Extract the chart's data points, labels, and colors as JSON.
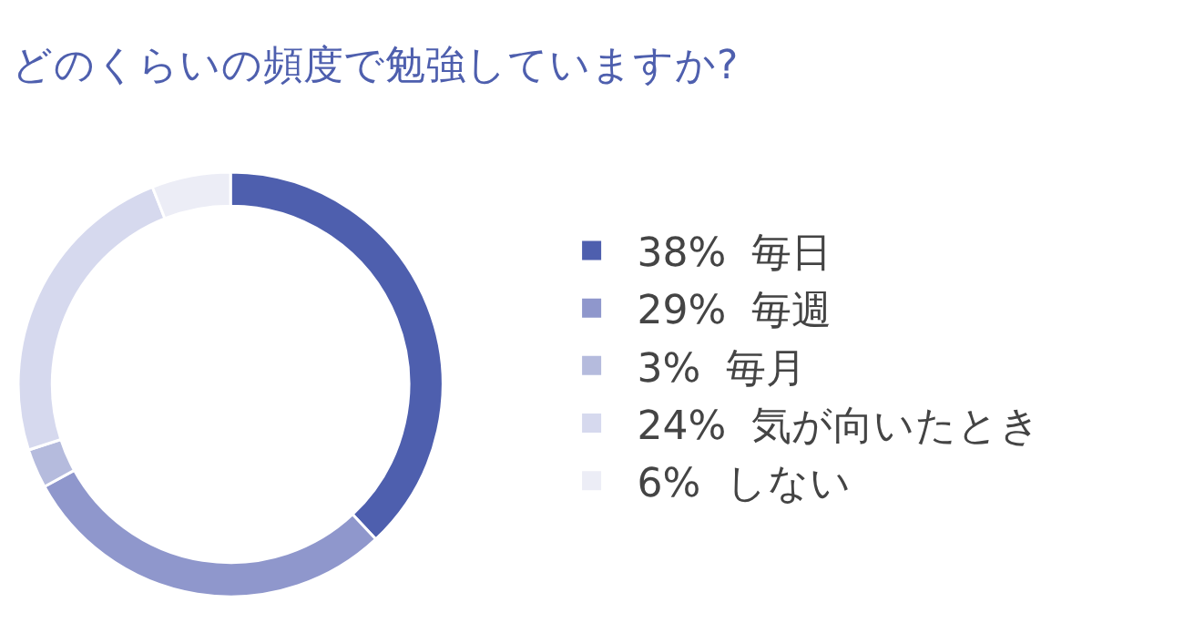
{
  "chart_data": {
    "type": "donut",
    "title": "どのくらいの頻度で勉強していますか?",
    "categories": [
      "毎日",
      "毎週",
      "毎月",
      "気が向いたとき",
      "しない"
    ],
    "values": [
      38,
      29,
      3,
      24,
      6
    ],
    "value_labels": [
      "38%",
      "29%",
      "3%",
      "24%",
      "6%"
    ],
    "colors": [
      "#4e5fae",
      "#8f97cc",
      "#b5bbdd",
      "#d6d9ee",
      "#ecedf6"
    ],
    "legend": "right"
  }
}
